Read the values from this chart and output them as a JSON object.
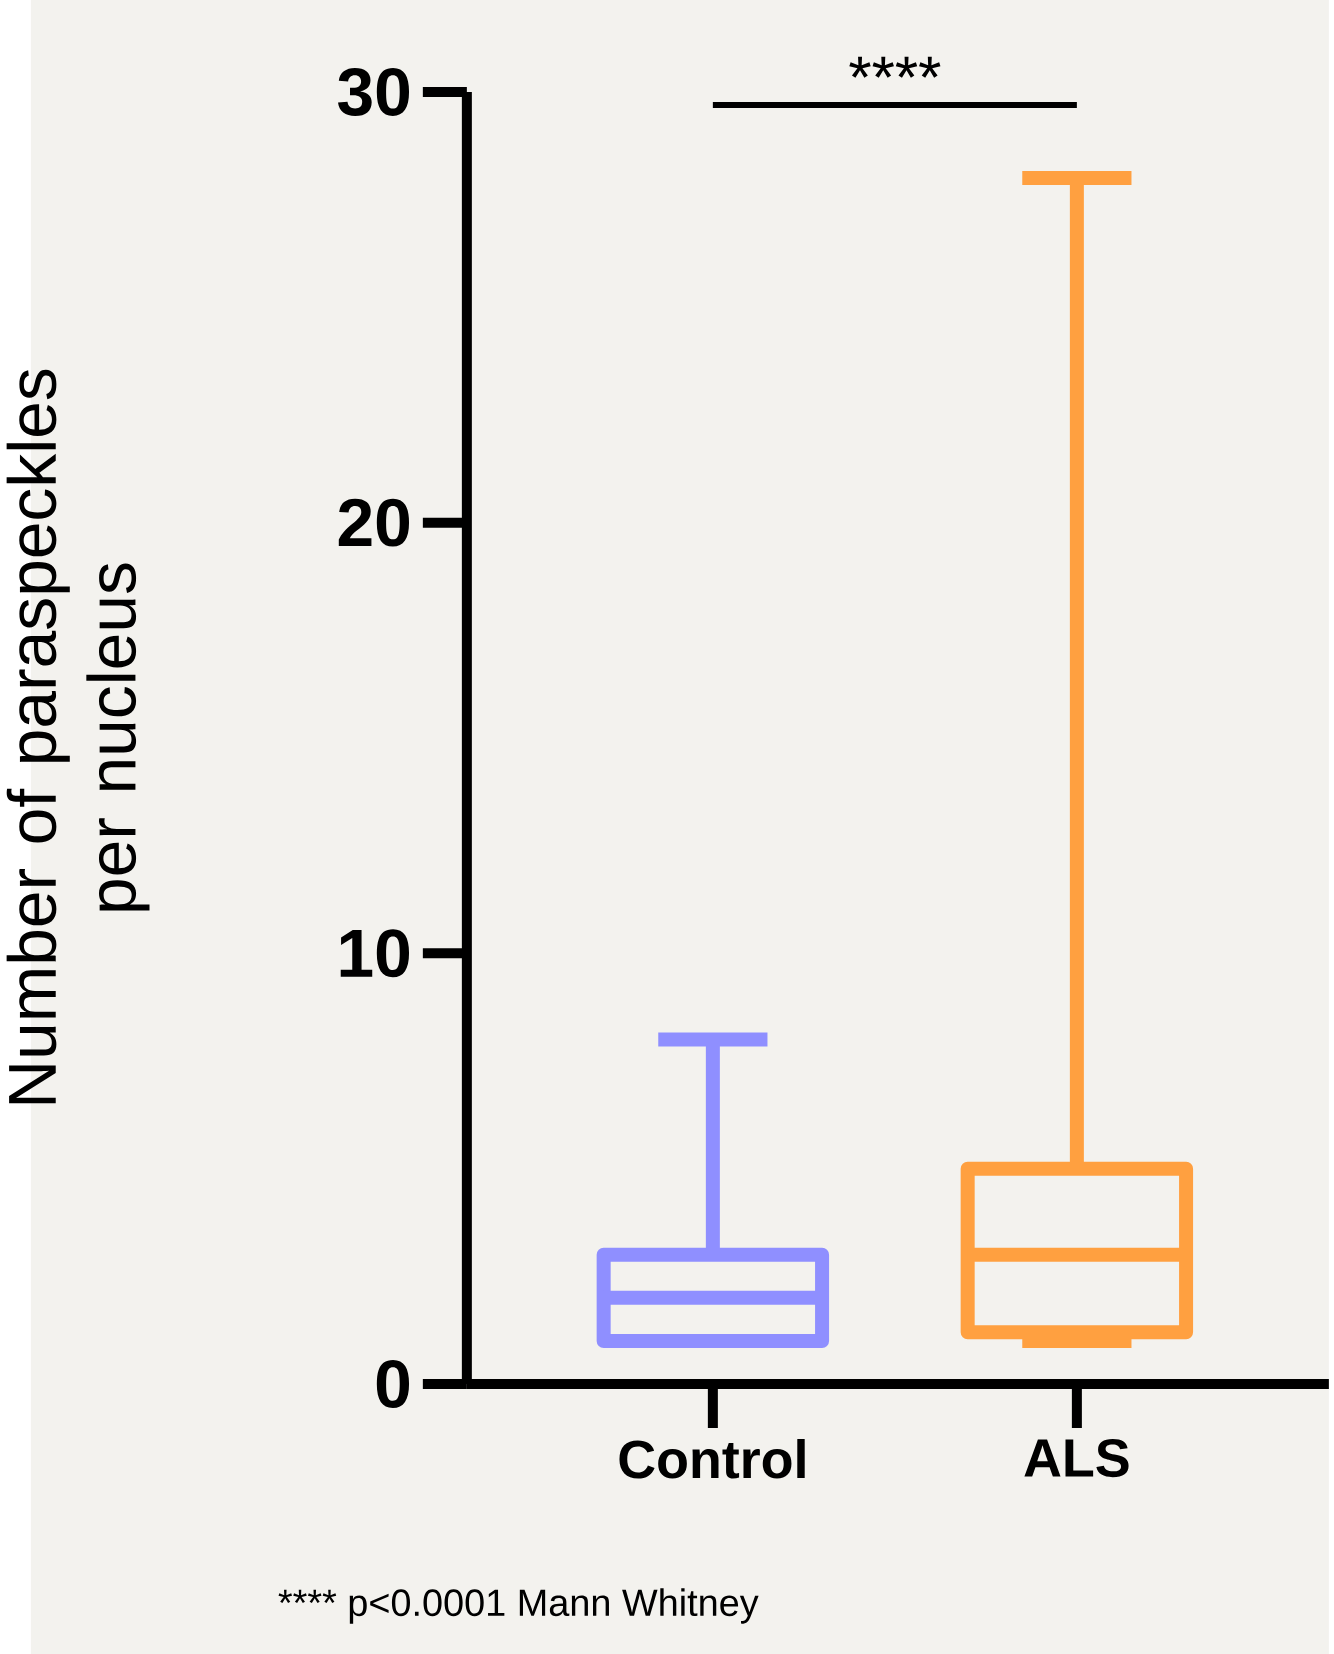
{
  "chart_data": {
    "type": "box",
    "categories": [
      "Control",
      "ALS"
    ],
    "ylabel": "Number of paraspeckles per nucleus",
    "ylim": [
      0,
      30
    ],
    "yticks": [
      0,
      10,
      20,
      30
    ],
    "colors": [
      "#8f8fff",
      "#ffa040"
    ],
    "boxes": [
      {
        "low": 1,
        "q1": 1,
        "median": 2,
        "q3": 3,
        "high": 8
      },
      {
        "low": 1,
        "q1": 1.2,
        "median": 3,
        "q3": 5,
        "high": 28
      }
    ],
    "annotations": [
      "****",
      "**** p<0.0001 Mann Whitney"
    ]
  }
}
